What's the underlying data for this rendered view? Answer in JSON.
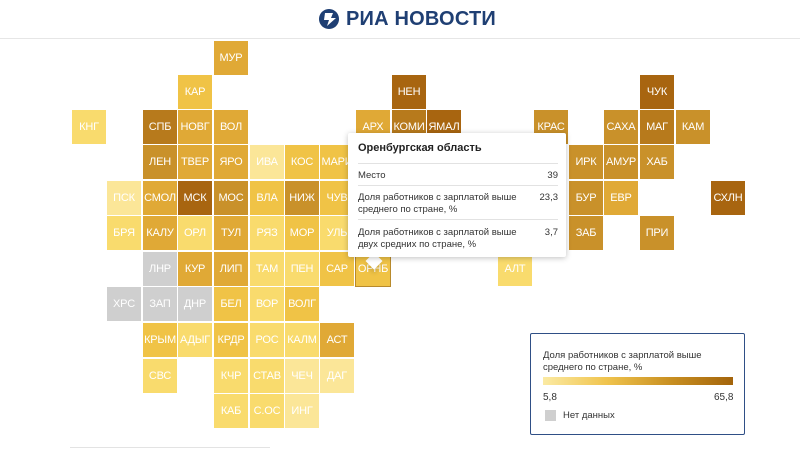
{
  "brand": {
    "name": "РИА НОВОСТИ",
    "color": "#1f3f73"
  },
  "colors": {
    "c1": "#fbe698",
    "c2": "#f9db6d",
    "c3": "#f0c346",
    "c4": "#e0a936",
    "c5": "#c9912a",
    "c6": "#b77a1c",
    "c7": "#a86510",
    "nodata": "#cfcfcf"
  },
  "tiles": [
    {
      "label": "МУР",
      "c": "c4"
    },
    {
      "label": "КАР",
      "c": "c3"
    },
    {
      "label": "НЕН",
      "c": "c7"
    },
    {
      "label": "ЧУК",
      "c": "c7"
    },
    {
      "label": "КНГ",
      "c": "c2"
    },
    {
      "label": "СПБ",
      "c": "c6"
    },
    {
      "label": "НОВГ",
      "c": "c4"
    },
    {
      "label": "ВОЛ",
      "c": "c4"
    },
    {
      "label": "АРХ",
      "c": "c4"
    },
    {
      "label": "КОМИ",
      "c": "c6"
    },
    {
      "label": "ЯМАЛ",
      "c": "c7"
    },
    {
      "label": "КРАС",
      "c": "c5"
    },
    {
      "label": "САХА",
      "c": "c5"
    },
    {
      "label": "МАГ",
      "c": "c6"
    },
    {
      "label": "КАМ",
      "c": "c5"
    },
    {
      "label": "ЛЕН",
      "c": "c5"
    },
    {
      "label": "ТВЕР",
      "c": "c4"
    },
    {
      "label": "ЯРО",
      "c": "c4"
    },
    {
      "label": "ИВА",
      "c": "c1"
    },
    {
      "label": "КОС",
      "c": "c3"
    },
    {
      "label": "МАРИ",
      "c": "c3"
    },
    {
      "label": "ИРК",
      "c": "c5"
    },
    {
      "label": "АМУР",
      "c": "c5"
    },
    {
      "label": "ХАБ",
      "c": "c5"
    },
    {
      "label": "ПСК",
      "c": "c1"
    },
    {
      "label": "СМОЛ",
      "c": "c4"
    },
    {
      "label": "МСК",
      "c": "c7"
    },
    {
      "label": "МОС",
      "c": "c5"
    },
    {
      "label": "ВЛА",
      "c": "c3"
    },
    {
      "label": "НИЖ",
      "c": "c5"
    },
    {
      "label": "ЧУВ",
      "c": "c3"
    },
    {
      "label": "БУР",
      "c": "c5"
    },
    {
      "label": "ЕВР",
      "c": "c4"
    },
    {
      "label": "СХЛН",
      "c": "c7"
    },
    {
      "label": "БРЯ",
      "c": "c2"
    },
    {
      "label": "КАЛУ",
      "c": "c4"
    },
    {
      "label": "ОРЛ",
      "c": "c2"
    },
    {
      "label": "ТУЛ",
      "c": "c4"
    },
    {
      "label": "РЯЗ",
      "c": "c2"
    },
    {
      "label": "МОР",
      "c": "c3"
    },
    {
      "label": "УЛЬ",
      "c": "c2"
    },
    {
      "label": "ЗАБ",
      "c": "c5"
    },
    {
      "label": "ПРИ",
      "c": "c5"
    },
    {
      "label": "ЛНР",
      "c": "nodata"
    },
    {
      "label": "КУР",
      "c": "c4"
    },
    {
      "label": "ЛИП",
      "c": "c4"
    },
    {
      "label": "ТАМ",
      "c": "c2"
    },
    {
      "label": "ПЕН",
      "c": "c2"
    },
    {
      "label": "САР",
      "c": "c3"
    },
    {
      "label": "ОРНБ",
      "c": "c3"
    },
    {
      "label": "АЛТ",
      "c": "c2"
    },
    {
      "label": "ХРС",
      "c": "nodata"
    },
    {
      "label": "ЗАП",
      "c": "nodata"
    },
    {
      "label": "ДНР",
      "c": "nodata"
    },
    {
      "label": "БЕЛ",
      "c": "c3"
    },
    {
      "label": "ВОР",
      "c": "c2"
    },
    {
      "label": "ВОЛГ",
      "c": "c3"
    },
    {
      "label": "КРЫМ",
      "c": "c3"
    },
    {
      "label": "АДЫГ",
      "c": "c2"
    },
    {
      "label": "КРДР",
      "c": "c3"
    },
    {
      "label": "РОС",
      "c": "c2"
    },
    {
      "label": "КАЛМ",
      "c": "c2"
    },
    {
      "label": "АСТ",
      "c": "c4"
    },
    {
      "label": "СВС",
      "c": "c2"
    },
    {
      "label": "КЧР",
      "c": "c2"
    },
    {
      "label": "СТАВ",
      "c": "c2"
    },
    {
      "label": "ЧЕЧ",
      "c": "c1"
    },
    {
      "label": "ДАГ",
      "c": "c1"
    },
    {
      "label": "КАБ",
      "c": "c2"
    },
    {
      "label": "С.ОС",
      "c": "c2"
    },
    {
      "label": "ИНГ",
      "c": "c1"
    }
  ],
  "tooltip": {
    "title": "Оренбургская область",
    "rows": [
      {
        "label": "Место",
        "value": "39"
      },
      {
        "label": "Доля работников с зарплатой выше среднего по стране, %",
        "value": "23,3"
      },
      {
        "label": "Доля работников с зарплатой выше двух средних по стране, %",
        "value": "3,7"
      }
    ]
  },
  "legend": {
    "title": "Доля работников с зарплатой выше среднего по стране, %",
    "min": "5,8",
    "max": "65,8",
    "nodata_label": "Нет данных"
  }
}
